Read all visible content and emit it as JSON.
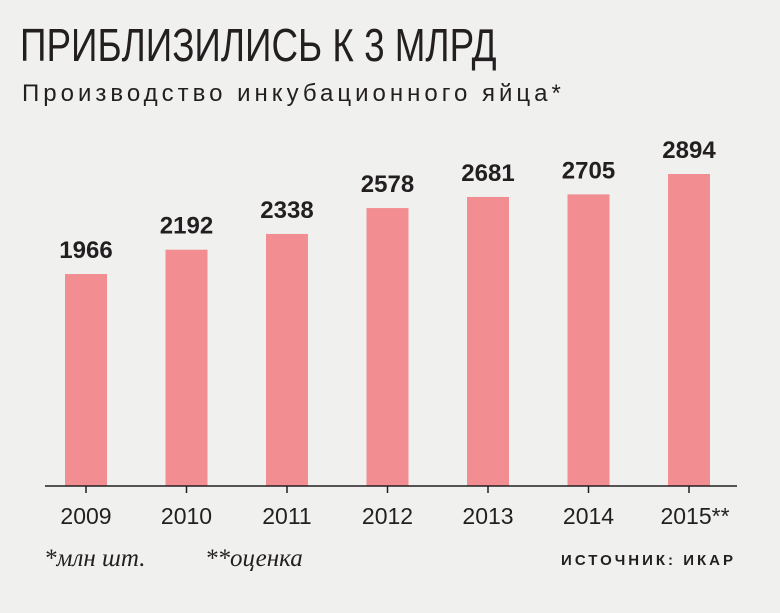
{
  "chart_data": {
    "type": "bar",
    "title": "ПРИБЛИЗИЛИСЬ К 3 МЛРД",
    "subtitle": "Производство инкубационного яйца*",
    "categories": [
      "2009",
      "2010",
      "2011",
      "2012",
      "2013",
      "2014",
      "2015**"
    ],
    "values": [
      1966,
      2192,
      2338,
      2578,
      2681,
      2705,
      2894
    ],
    "value_labels": [
      "1966",
      "2192",
      "2338",
      "2578",
      "2681",
      "2705",
      "2894"
    ],
    "ylim": [
      0,
      3000
    ],
    "grid": false,
    "bar_color": "#f28e92",
    "axis_color": "#231f20"
  },
  "footnotes": {
    "unit": "*млн шт.",
    "estimate": "**оценка"
  },
  "source": "ИСТОЧНИК: ИКАР"
}
